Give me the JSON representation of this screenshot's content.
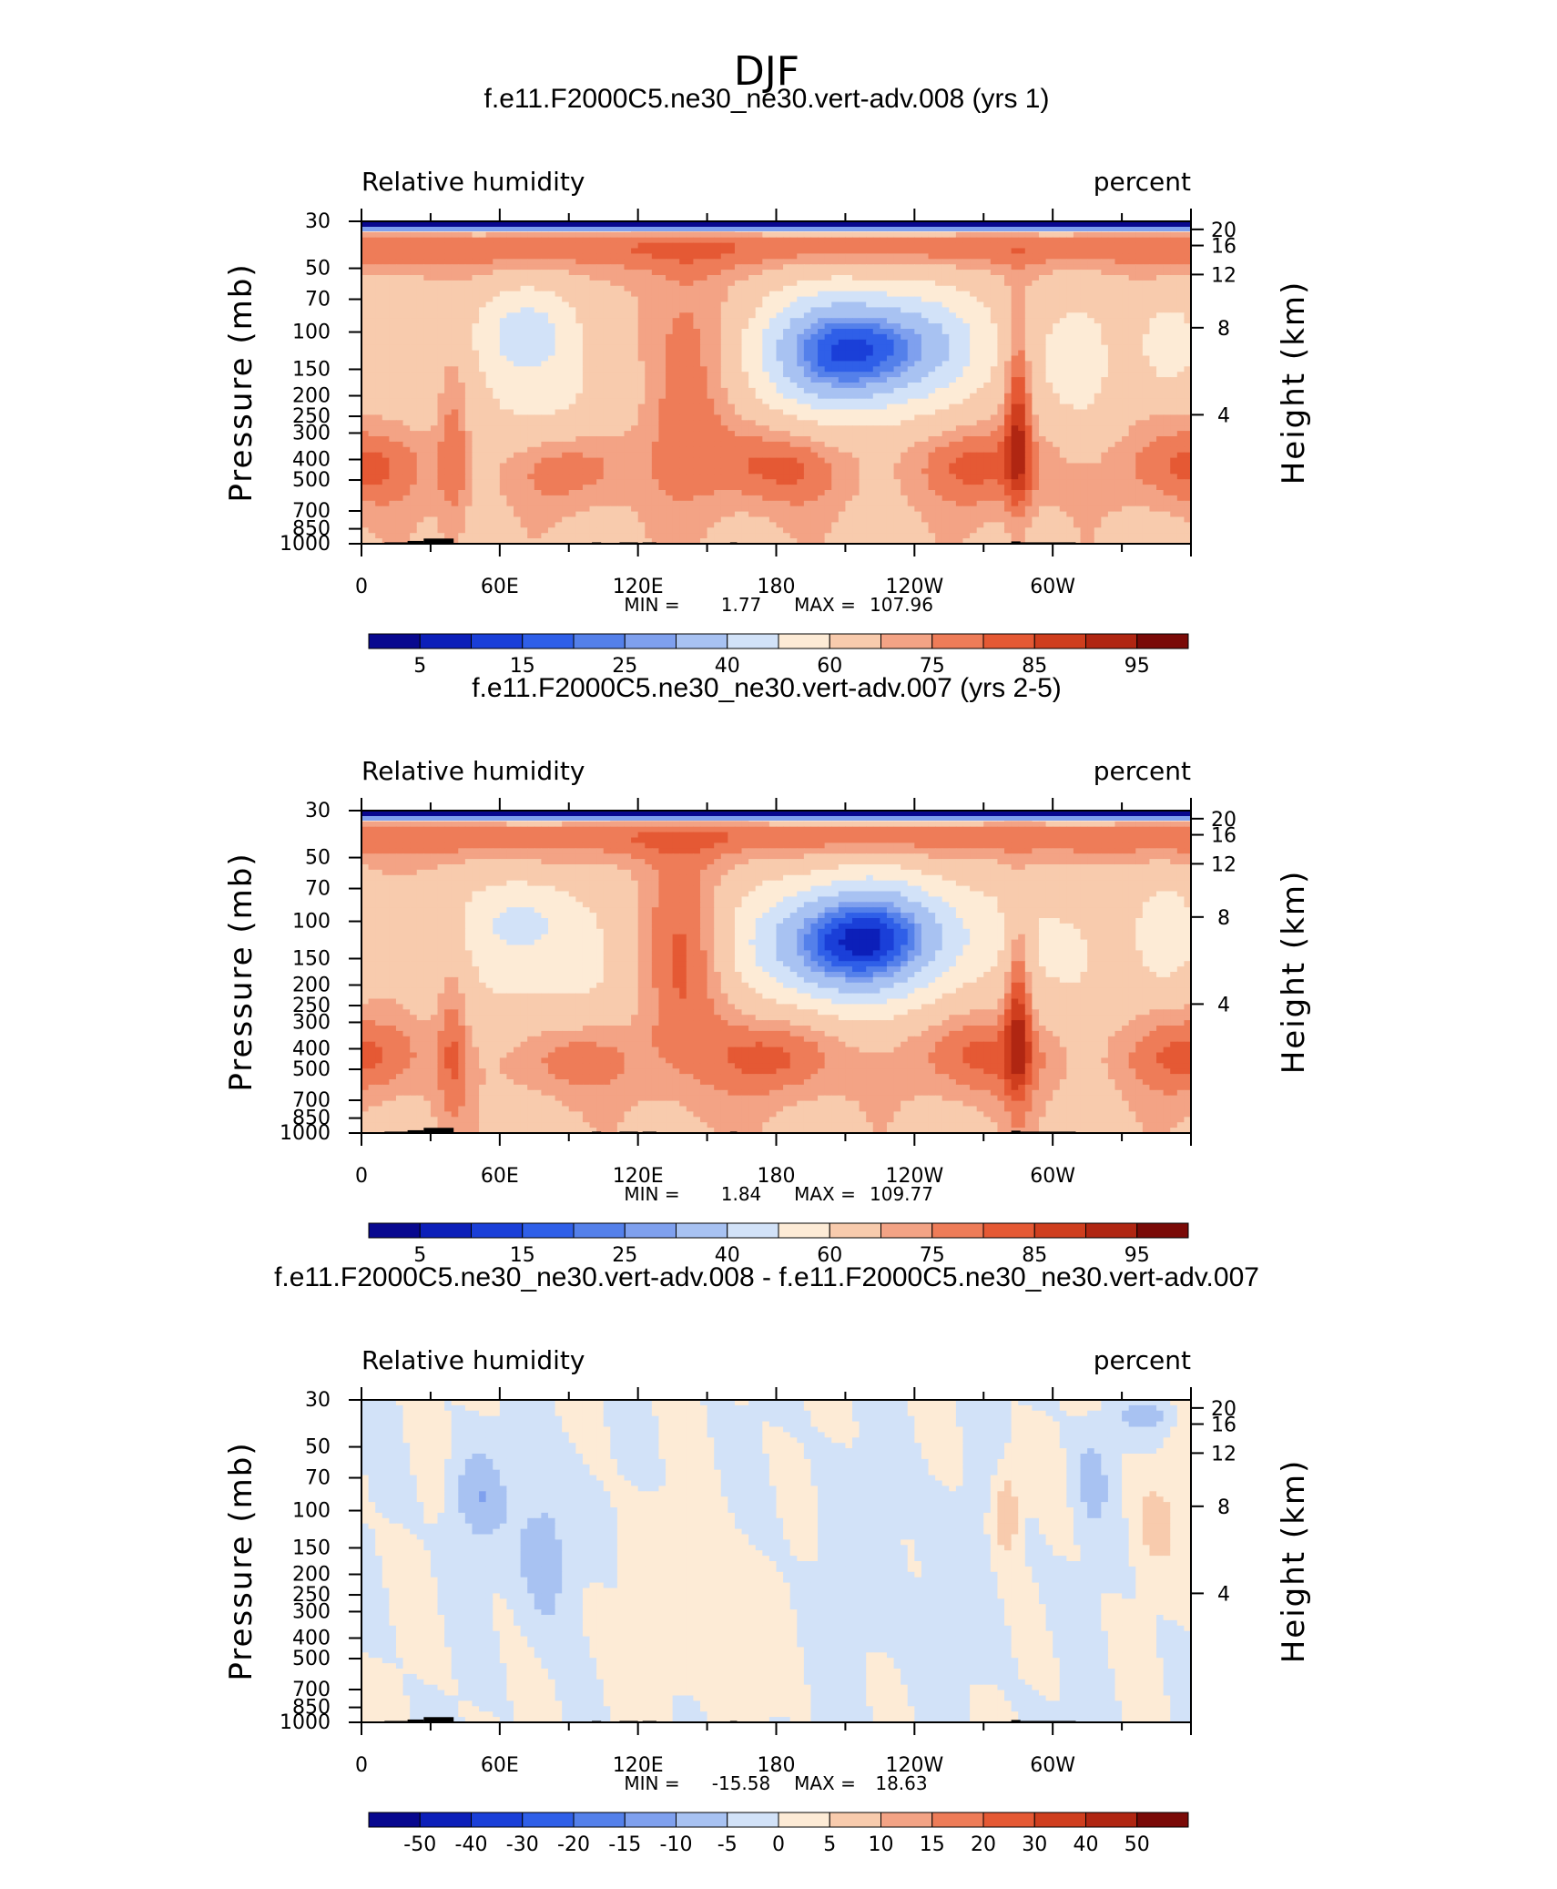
{
  "suptitle": "DJF",
  "panel_labels": {
    "left_subtitle": "Relative humidity",
    "right_subtitle": "percent",
    "left_axis_label": "Pressure (mb)",
    "right_axis_label": "Height (km)"
  },
  "colors": {
    "rh_levels": [
      "#08088f",
      "#0c1fb9",
      "#1a3fd8",
      "#2f5fe8",
      "#5480ea",
      "#7fa0ee",
      "#a8c2f2",
      "#d2e2f8",
      "#fdebd6",
      "#f8cbad",
      "#f3a385",
      "#ee7c58",
      "#e55934",
      "#cf3e1e",
      "#b02612",
      "#7a0a07"
    ],
    "diff_levels": [
      "#08088f",
      "#0c1fb9",
      "#1a3fd8",
      "#2f5fe8",
      "#5480ea",
      "#7fa0ee",
      "#a8c2f2",
      "#d2e2f8",
      "#fdebd6",
      "#f8cbad",
      "#f3a385",
      "#ee7c58",
      "#e55934",
      "#cf3e1e",
      "#b02612",
      "#7a0a07"
    ]
  },
  "chart_data": [
    {
      "type": "heatmap",
      "title": "f.e11.F2000C5.ne30_ne30.vert-adv.008 (yrs 1)",
      "field": "Relative humidity",
      "units": "percent",
      "x_ticks": [
        "0",
        "60E",
        "120E",
        "180",
        "120W",
        "60W"
      ],
      "xlim": [
        0,
        360
      ],
      "y_ticks": [
        "30",
        "50",
        "70",
        "100",
        "150",
        "200",
        "250",
        "300",
        "400",
        "500",
        "700",
        "850",
        "1000"
      ],
      "ylim_mb": [
        1000,
        30
      ],
      "height_ticks_km": [
        "20",
        "16",
        "12",
        "8",
        "4"
      ],
      "min_label": "MIN =",
      "min": "1.77",
      "max_label": "MAX =",
      "max": "107.96",
      "colorbar_labels": [
        "5",
        "15",
        "25",
        "40",
        "60",
        "75",
        "85",
        "95"
      ]
    },
    {
      "type": "heatmap",
      "title": "f.e11.F2000C5.ne30_ne30.vert-adv.007 (yrs 2-5)",
      "field": "Relative humidity",
      "units": "percent",
      "x_ticks": [
        "0",
        "60E",
        "120E",
        "180",
        "120W",
        "60W"
      ],
      "xlim": [
        0,
        360
      ],
      "y_ticks": [
        "30",
        "50",
        "70",
        "100",
        "150",
        "200",
        "250",
        "300",
        "400",
        "500",
        "700",
        "850",
        "1000"
      ],
      "ylim_mb": [
        1000,
        30
      ],
      "height_ticks_km": [
        "20",
        "16",
        "12",
        "8",
        "4"
      ],
      "min_label": "MIN =",
      "min": "1.84",
      "max_label": "MAX =",
      "max": "109.77",
      "colorbar_labels": [
        "5",
        "15",
        "25",
        "40",
        "60",
        "75",
        "85",
        "95"
      ]
    },
    {
      "type": "heatmap",
      "title": "f.e11.F2000C5.ne30_ne30.vert-adv.008 - f.e11.F2000C5.ne30_ne30.vert-adv.007",
      "field": "Relative humidity",
      "units": "percent",
      "x_ticks": [
        "0",
        "60E",
        "120E",
        "180",
        "120W",
        "60W"
      ],
      "xlim": [
        0,
        360
      ],
      "y_ticks": [
        "30",
        "50",
        "70",
        "100",
        "150",
        "200",
        "250",
        "300",
        "400",
        "500",
        "700",
        "850",
        "1000"
      ],
      "ylim_mb": [
        1000,
        30
      ],
      "height_ticks_km": [
        "20",
        "16",
        "12",
        "8",
        "4"
      ],
      "min_label": "MIN =",
      "min": "-15.58",
      "max_label": "MAX =",
      "max": "18.63",
      "colorbar_labels": [
        "-50",
        "-40",
        "-30",
        "-20",
        "-15",
        "-10",
        "-5",
        "0",
        "5",
        "10",
        "15",
        "20",
        "30",
        "40",
        "50"
      ]
    }
  ]
}
